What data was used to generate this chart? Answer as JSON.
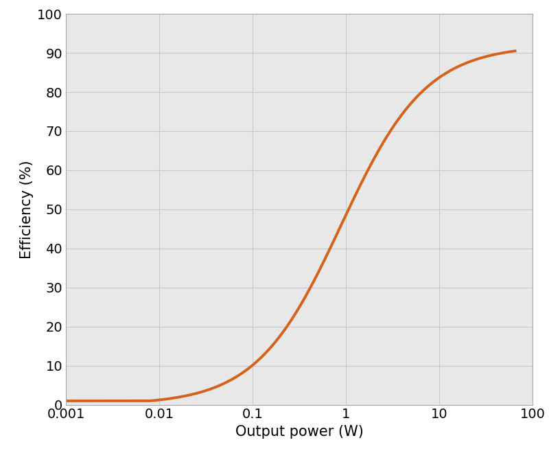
{
  "title": "",
  "xlabel": "Output power (W)",
  "ylabel": "Efficiency (%)",
  "line_color": "#D4621A",
  "line_width": 2.8,
  "ylim": [
    0,
    100
  ],
  "yticks": [
    0,
    10,
    20,
    30,
    40,
    50,
    60,
    70,
    80,
    90,
    100
  ],
  "xtick_labels": [
    "0.001",
    "0.01",
    "0.1",
    "1",
    "10",
    "100"
  ],
  "xtick_values": [
    0.001,
    0.01,
    0.1,
    1,
    10,
    100
  ],
  "grid_color": "#C8C8C8",
  "plot_bg_color": "#E8E8E8",
  "fig_bg_color": "#FFFFFF",
  "xlabel_fontsize": 15,
  "ylabel_fontsize": 15,
  "tick_fontsize": 14,
  "sigmoid_k": 2.2,
  "sigmoid_x0": -0.05,
  "sigmoid_L": 92.0,
  "sigmoid_floor": 1.0
}
